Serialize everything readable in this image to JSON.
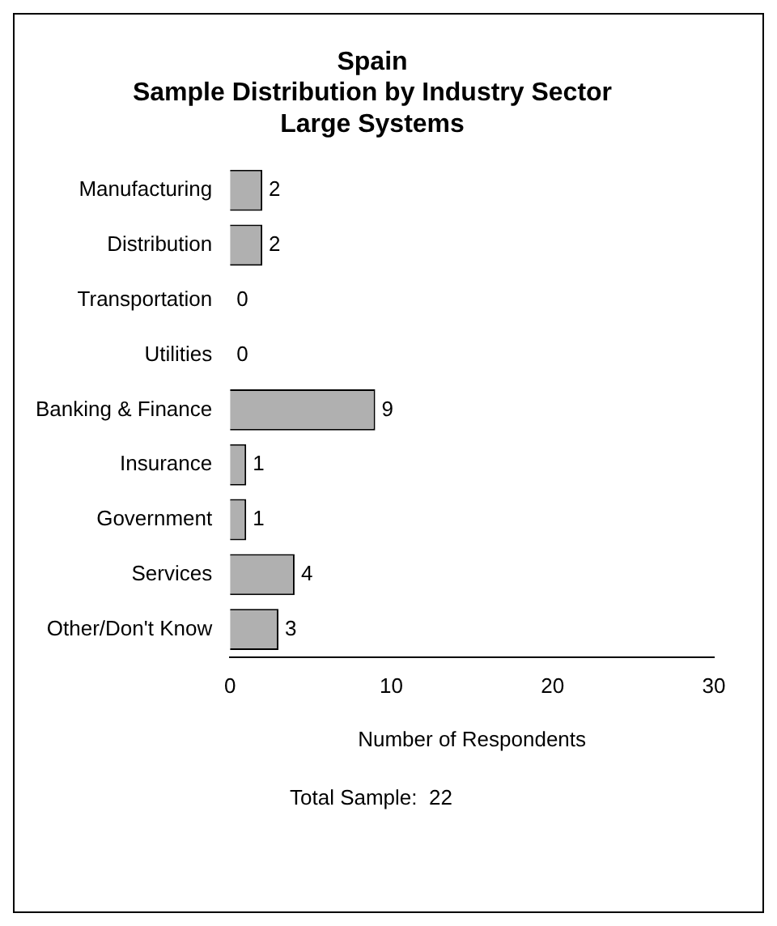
{
  "chart_data": {
    "type": "bar",
    "orientation": "horizontal",
    "title": "Spain\nSample Distribution by Industry Sector\nLarge Systems",
    "categories": [
      "Manufacturing",
      "Distribution",
      "Transportation",
      "Utilities",
      "Banking & Finance",
      "Insurance",
      "Government",
      "Services",
      "Other/Don't Know"
    ],
    "values": [
      2,
      2,
      0,
      0,
      9,
      1,
      1,
      4,
      3
    ],
    "color": "#b0b0b0",
    "xlim": [
      0,
      30
    ],
    "xticks": [
      0,
      10,
      20,
      30
    ],
    "xlabel": "Number of Respondents",
    "grid": false,
    "legend": false,
    "data_labels": true,
    "annotations": [
      "Total Sample:  22"
    ]
  }
}
